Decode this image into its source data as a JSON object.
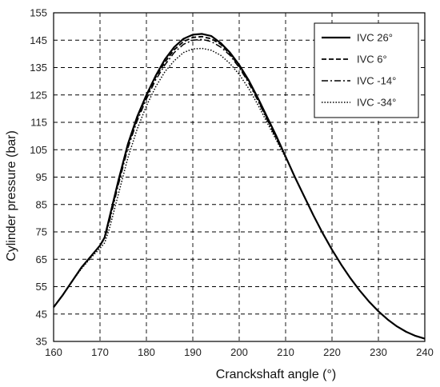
{
  "chart_data": {
    "type": "line",
    "title": "",
    "xlabel": "Cranckshaft angle (°)",
    "ylabel": "Cylinder pressure (bar)",
    "xlim": [
      160,
      240
    ],
    "ylim": [
      35,
      155
    ],
    "xticks": [
      "160",
      "170",
      "180",
      "190",
      "200",
      "210",
      "220",
      "230",
      "240"
    ],
    "yticks": [
      "35",
      "45",
      "55",
      "65",
      "75",
      "85",
      "95",
      "105",
      "115",
      "125",
      "135",
      "145",
      "155"
    ],
    "grid": true,
    "grid_style": "dashed",
    "legend_position": "top-right",
    "series": [
      {
        "name": "IVC 26°",
        "line_style": "solid",
        "color": "#000000",
        "x": [
          160,
          162,
          164,
          166,
          168,
          170,
          171,
          172,
          174,
          176,
          178,
          180,
          182,
          184,
          186,
          188,
          190,
          192,
          194,
          196,
          198,
          200,
          202,
          204,
          206,
          208,
          210,
          212,
          214,
          216,
          218,
          220,
          222,
          224,
          226,
          228,
          230,
          232,
          234,
          236,
          238,
          240
        ],
        "y": [
          47.5,
          52,
          57,
          62,
          66,
          70,
          73,
          80,
          94,
          107,
          117,
          125,
          132,
          138,
          142.5,
          145.5,
          147,
          147.3,
          146.5,
          144,
          140.5,
          136,
          130.5,
          124,
          117,
          110,
          102.5,
          95,
          88,
          81,
          74.5,
          68.5,
          63,
          58,
          53.5,
          49.5,
          46,
          43,
          40.5,
          38.5,
          37,
          36
        ]
      },
      {
        "name": "IVC 6°",
        "line_style": "dashed",
        "color": "#000000",
        "x": [
          160,
          162,
          164,
          166,
          168,
          170,
          171,
          172,
          174,
          176,
          178,
          180,
          182,
          184,
          186,
          188,
          190,
          192,
          194,
          196,
          198,
          200,
          202,
          204,
          206,
          208,
          210
        ],
        "y": [
          47.5,
          52,
          57,
          62,
          66,
          70,
          73,
          79.5,
          93.5,
          106.5,
          116.5,
          124.5,
          131.5,
          137,
          141.5,
          144.5,
          146,
          146.3,
          145.5,
          143.5,
          140,
          135.5,
          130,
          123.5,
          116.5,
          109.5,
          102.5
        ]
      },
      {
        "name": "IVC -14°",
        "line_style": "dashdot",
        "color": "#000000",
        "x": [
          160,
          162,
          164,
          166,
          168,
          170,
          171,
          172,
          174,
          176,
          178,
          180,
          182,
          184,
          186,
          188,
          190,
          192,
          194,
          196,
          198,
          200,
          202,
          204,
          206,
          208,
          210
        ],
        "y": [
          47.5,
          52,
          57,
          62,
          66,
          70,
          72.5,
          78.5,
          92.5,
          105.5,
          115.5,
          123.5,
          130.5,
          136,
          140.5,
          143.5,
          145,
          145.3,
          144.5,
          142.5,
          139.5,
          135,
          129.5,
          123,
          116,
          109,
          102.5
        ]
      },
      {
        "name": "IVC -34°",
        "line_style": "dotted",
        "color": "#000000",
        "x": [
          160,
          162,
          164,
          166,
          168,
          170,
          171,
          172,
          174,
          176,
          178,
          180,
          182,
          184,
          186,
          188,
          190,
          192,
          194,
          196,
          198,
          200,
          202,
          204,
          206,
          208,
          210
        ],
        "y": [
          47.5,
          52,
          57,
          61.5,
          65.5,
          69,
          71,
          76,
          89,
          102,
          112.5,
          121,
          128,
          133.5,
          137.5,
          140.5,
          141.8,
          142,
          141.3,
          139.5,
          136.5,
          132.5,
          127.5,
          121.5,
          115,
          108.5,
          102
        ]
      }
    ]
  }
}
